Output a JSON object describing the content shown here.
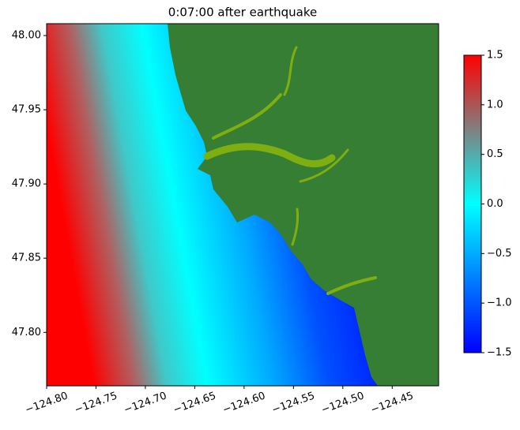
{
  "chart_data": {
    "type": "heatmap-map",
    "title": "0:07:00 after earthquake",
    "xlim": [
      -124.8,
      -124.403
    ],
    "ylim": [
      47.764,
      48.008
    ],
    "xticks": [
      {
        "value": -124.8,
        "label": "−124.80"
      },
      {
        "value": -124.75,
        "label": "−124.75"
      },
      {
        "value": -124.7,
        "label": "−124.70"
      },
      {
        "value": -124.65,
        "label": "−124.65"
      },
      {
        "value": -124.6,
        "label": "−124.60"
      },
      {
        "value": -124.55,
        "label": "−124.55"
      },
      {
        "value": -124.5,
        "label": "−124.50"
      },
      {
        "value": -124.45,
        "label": "−124.45"
      }
    ],
    "yticks": [
      {
        "value": 47.8,
        "label": "47.80"
      },
      47.85,
      {
        "value": 47.9,
        "label": "47.90"
      },
      47.95,
      {
        "value": 48.0,
        "label": "48.00"
      }
    ],
    "clim": [
      -1.5,
      1.5
    ],
    "cticks": [
      {
        "value": -1.5,
        "label": "−1.5"
      },
      {
        "value": -1.0,
        "label": "−1.0"
      },
      {
        "value": -0.5,
        "label": "−0.5"
      },
      {
        "value": 0,
        "label": "0.0"
      },
      0.5,
      {
        "value": 1.0,
        "label": "1.0"
      },
      1.5
    ],
    "land_color": "#367e33"
  }
}
